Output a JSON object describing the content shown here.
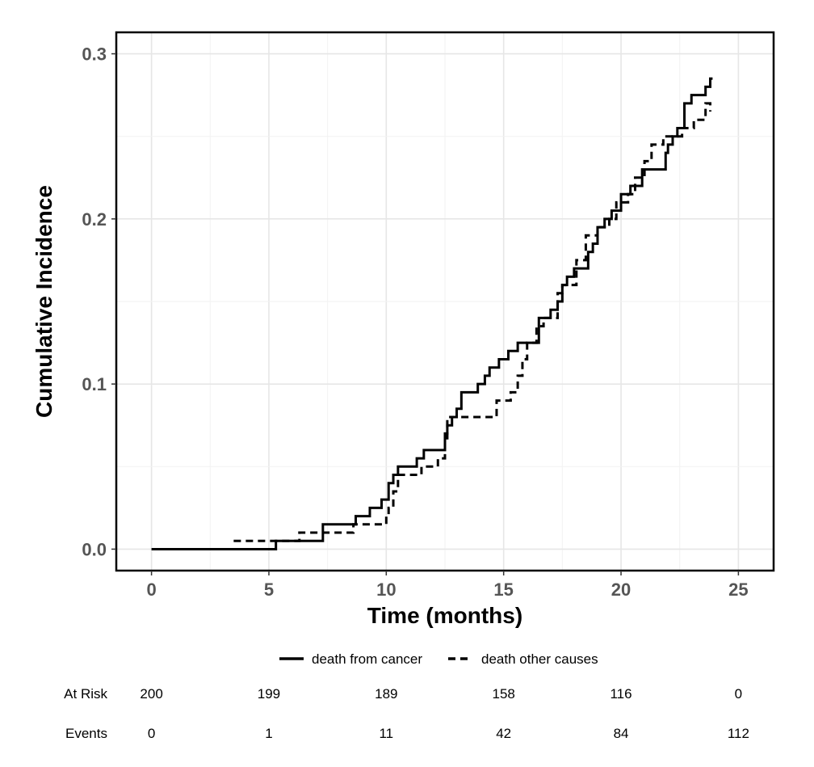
{
  "chart_data": {
    "type": "line",
    "title": "",
    "xlabel": "Time (months)",
    "ylabel": "Cumulative Incidence",
    "xlim": [
      -1.5,
      26.5
    ],
    "ylim": [
      -0.013,
      0.313
    ],
    "x_ticks": [
      0,
      5,
      10,
      15,
      20,
      25
    ],
    "y_ticks": [
      0.0,
      0.1,
      0.2,
      0.3
    ],
    "x_tick_labels": [
      "0",
      "5",
      "10",
      "15",
      "20",
      "25"
    ],
    "y_tick_labels": [
      "0.0",
      "0.1",
      "0.2",
      "0.3"
    ],
    "grid": true,
    "legend_position": "bottom",
    "series": [
      {
        "name": "death from cancer",
        "line_style": "solid",
        "color": "#000000",
        "x": [
          0,
          5.3,
          7.3,
          8.7,
          9.3,
          9.8,
          10.1,
          10.3,
          10.5,
          11.3,
          11.6,
          12.5,
          12.6,
          12.8,
          13.0,
          13.2,
          13.9,
          14.2,
          14.4,
          14.8,
          15.2,
          15.6,
          16.5,
          17.0,
          17.3,
          17.5,
          17.7,
          18.0,
          18.6,
          18.8,
          19.0,
          19.3,
          19.6,
          20.0,
          20.4,
          20.9,
          21.9,
          22.0,
          22.2,
          22.4,
          22.7,
          23.0,
          23.6,
          23.8,
          23.9
        ],
        "y": [
          0,
          0.005,
          0.015,
          0.02,
          0.025,
          0.03,
          0.04,
          0.045,
          0.05,
          0.055,
          0.06,
          0.07,
          0.075,
          0.08,
          0.085,
          0.095,
          0.1,
          0.105,
          0.11,
          0.115,
          0.12,
          0.125,
          0.14,
          0.145,
          0.15,
          0.16,
          0.165,
          0.17,
          0.18,
          0.185,
          0.195,
          0.2,
          0.205,
          0.215,
          0.22,
          0.23,
          0.24,
          0.245,
          0.25,
          0.255,
          0.27,
          0.275,
          0.28,
          0.285,
          0.285
        ]
      },
      {
        "name": "death other causes",
        "line_style": "dashed",
        "color": "#000000",
        "x": [
          3.5,
          6.3,
          7.2,
          8.6,
          10.0,
          10.1,
          10.3,
          10.5,
          11.5,
          12.2,
          12.5,
          12.6,
          14.4,
          14.7,
          15.3,
          15.6,
          15.8,
          16.0,
          16.4,
          16.7,
          17.3,
          17.5,
          18.1,
          18.5,
          19.0,
          19.5,
          19.8,
          20.3,
          20.6,
          21.0,
          21.3,
          21.8,
          22.6,
          23.1,
          23.6,
          23.8
        ],
        "y": [
          0.005,
          0.01,
          0.01,
          0.015,
          0.02,
          0.025,
          0.035,
          0.045,
          0.05,
          0.055,
          0.065,
          0.08,
          0.08,
          0.09,
          0.095,
          0.105,
          0.115,
          0.125,
          0.135,
          0.14,
          0.155,
          0.16,
          0.175,
          0.19,
          0.195,
          0.2,
          0.21,
          0.215,
          0.225,
          0.235,
          0.245,
          0.25,
          0.255,
          0.26,
          0.27,
          0.265
        ]
      }
    ],
    "risk_table": {
      "x": [
        0,
        5,
        10,
        15,
        20,
        25
      ],
      "rows": [
        {
          "label": "At Risk",
          "values": [
            "200",
            "199",
            "189",
            "158",
            "116",
            "0"
          ]
        },
        {
          "label": "Events",
          "values": [
            "0",
            "1",
            "11",
            "42",
            "84",
            "112"
          ]
        }
      ]
    }
  }
}
